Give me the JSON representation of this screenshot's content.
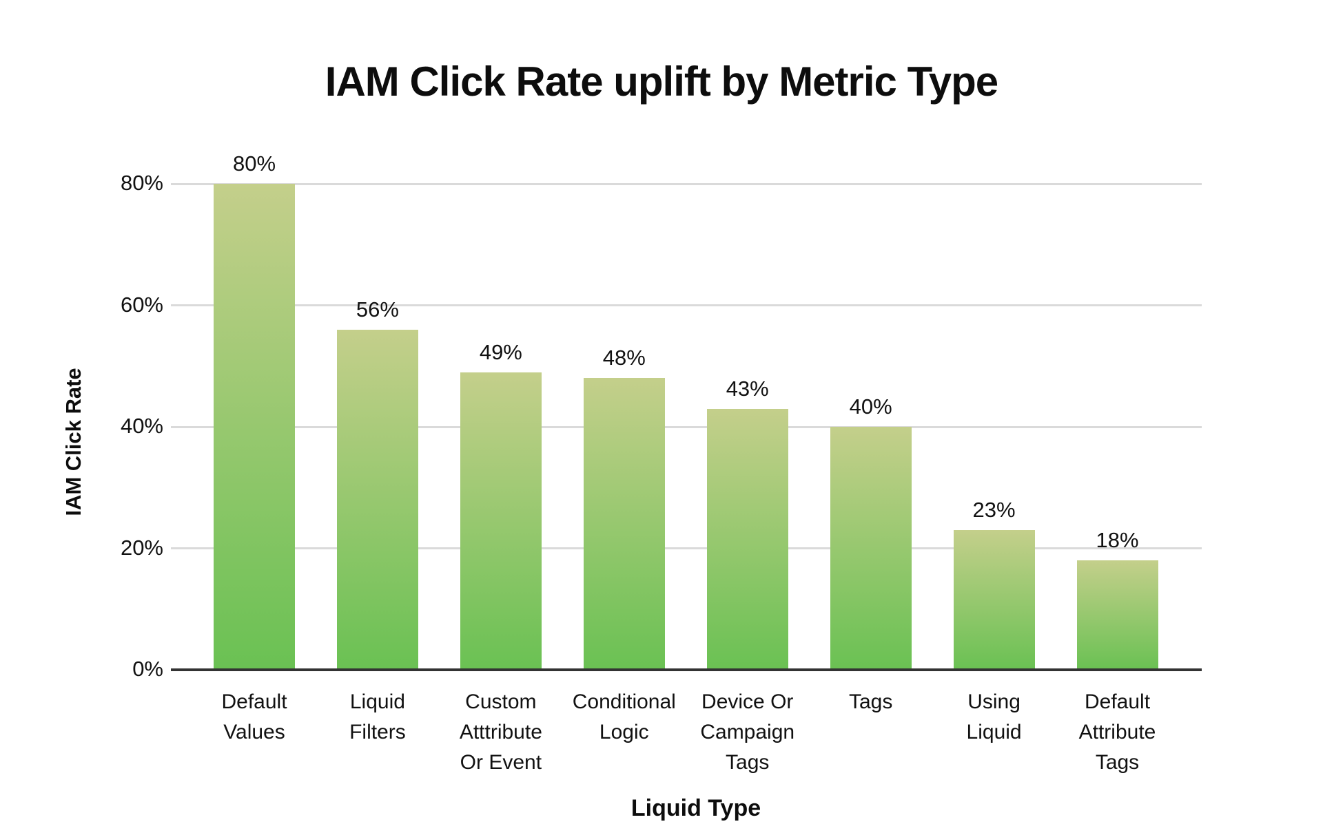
{
  "chart_data": {
    "type": "bar",
    "title": "IAM Click Rate uplift by Metric Type",
    "xlabel": "Liquid Type",
    "ylabel": "IAM Click Rate",
    "ylim": [
      0,
      80
    ],
    "grid": true,
    "legend": "none",
    "yticks": [
      {
        "value": 0,
        "label": "0%"
      },
      {
        "value": 20,
        "label": "20%"
      },
      {
        "value": 40,
        "label": "40%"
      },
      {
        "value": 60,
        "label": "60%"
      },
      {
        "value": 80,
        "label": "80%"
      }
    ],
    "categories": [
      {
        "id": "default-values",
        "lines": [
          "Default",
          "Values"
        ]
      },
      {
        "id": "liquid-filters",
        "lines": [
          "Liquid",
          "Filters"
        ]
      },
      {
        "id": "custom-attribute-or-event",
        "lines": [
          "Custom",
          "Atttribute",
          "Or Event"
        ]
      },
      {
        "id": "conditional-logic",
        "lines": [
          "Conditional",
          "Logic"
        ]
      },
      {
        "id": "device-or-campaign-tags",
        "lines": [
          "Device Or",
          "Campaign",
          "Tags"
        ]
      },
      {
        "id": "tags",
        "lines": [
          "Tags"
        ]
      },
      {
        "id": "using-liquid",
        "lines": [
          "Using",
          "Liquid"
        ]
      },
      {
        "id": "default-attribute-tags",
        "lines": [
          "Default",
          "Attribute",
          "Tags"
        ]
      }
    ],
    "values": [
      80,
      56,
      49,
      48,
      43,
      40,
      23,
      18
    ],
    "value_labels": [
      "80%",
      "56%",
      "49%",
      "48%",
      "43%",
      "40%",
      "23%",
      "18%"
    ],
    "colors": {
      "bar_gradient_top": "#c4cf8b",
      "bar_gradient_bottom": "#6ac153",
      "gridline": "#dadada",
      "axis_line": "#333333",
      "text": "#111111",
      "background": "#ffffff"
    }
  }
}
